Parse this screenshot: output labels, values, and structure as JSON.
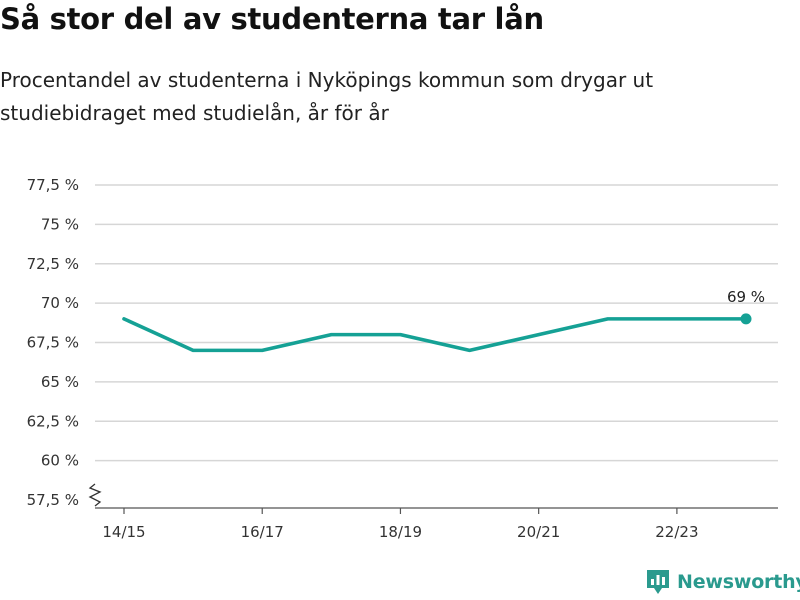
{
  "header": {
    "title": "Så stor del av studenterna tar lån",
    "subtitle": "Procentandel av studenterna i Nyköpings kommun som drygar ut studiebidraget med studielån, år för år"
  },
  "brand": {
    "name": "Newsworthy",
    "color": "#2a9a8e",
    "icon": "newsworthy-logo-icon"
  },
  "chart_data": {
    "type": "line",
    "x": [
      "14/15",
      "15/16",
      "16/17",
      "17/18",
      "18/19",
      "19/20",
      "20/21",
      "21/22",
      "22/23",
      "23/24"
    ],
    "series": [
      {
        "values": [
          69,
          67,
          67,
          68,
          68,
          67,
          68,
          69,
          69,
          69
        ],
        "color": "#15a195"
      }
    ],
    "x_tick_labels": [
      "14/15",
      "16/17",
      "18/19",
      "20/21",
      "22/23"
    ],
    "y_ticks": [
      57.5,
      60,
      62.5,
      65,
      67.5,
      70,
      72.5,
      75,
      77.5
    ],
    "y_tick_labels": [
      "57,5 %",
      "60 %",
      "62,5 %",
      "65 %",
      "67,5 %",
      "70 %",
      "72,5 %",
      "75 %",
      "77,5 %"
    ],
    "ylim": [
      57.5,
      77.5
    ],
    "y_axis_break": true,
    "grid": true,
    "annotations": [
      {
        "x": "23/24",
        "label": "69 %"
      }
    ]
  }
}
